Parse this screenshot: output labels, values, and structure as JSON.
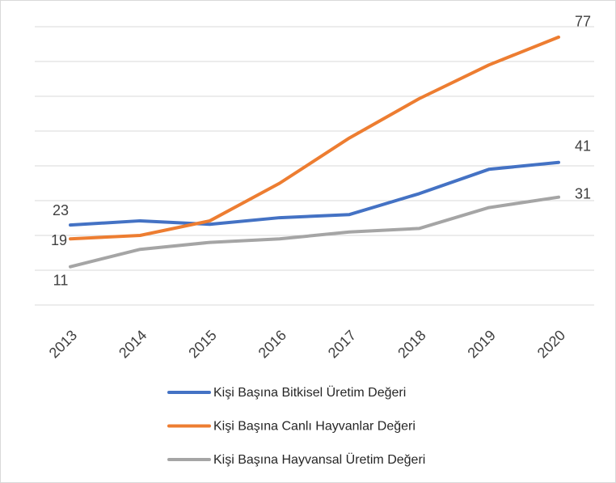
{
  "chart_data": {
    "type": "line",
    "categories": [
      "2013",
      "2014",
      "2015",
      "2016",
      "2017",
      "2018",
      "2019",
      "2020"
    ],
    "series": [
      {
        "name": "Kişi Başına Bitkisel Üretim Değeri",
        "color": "#4472c4",
        "values": [
          23,
          24.2,
          23.2,
          25.1,
          26,
          32,
          39,
          41
        ]
      },
      {
        "name": "Kişi Başına Canlı Hayvanlar Değeri",
        "color": "#ed7d31",
        "values": [
          19,
          20,
          24.2,
          35,
          48,
          59.3,
          69,
          77
        ]
      },
      {
        "name": "Kişi Başına Hayvansal Üretim Değeri",
        "color": "#a5a5a5",
        "values": [
          11,
          16,
          18,
          19,
          21,
          22,
          28,
          31
        ]
      }
    ],
    "ylim": [
      0,
      80
    ],
    "yticks": [
      0,
      10,
      20,
      30,
      40,
      50,
      60,
      70,
      80
    ],
    "grid": true
  }
}
